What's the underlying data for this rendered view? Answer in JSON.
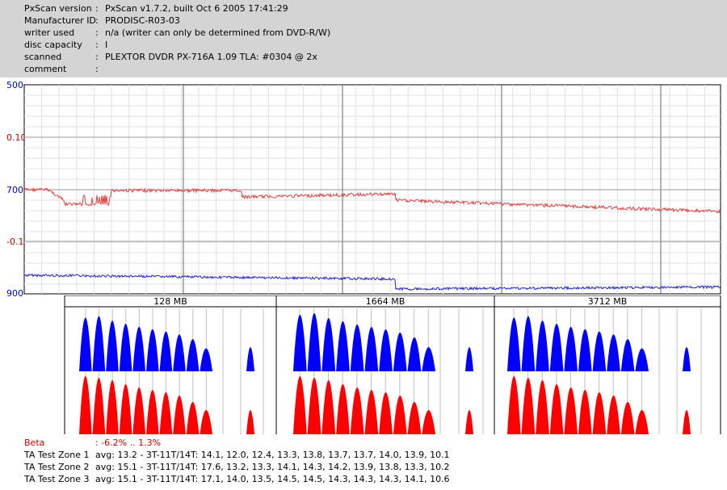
{
  "header": {
    "rows": [
      {
        "key": "PxScan version",
        "colon": ":",
        "value": "PxScan v1.7.2, built Oct  6 2005 17:41:29"
      },
      {
        "key": "Manufacturer ID",
        "colon": ":",
        "value": "PRODISC-R03-03"
      },
      {
        "key": "writer used",
        "colon": ":",
        "value": "n/a (writer can only be determined from DVD-R/W)"
      },
      {
        "key": "disc capacity",
        "colon": ":",
        "value": "I"
      },
      {
        "key": "scanned",
        "colon": ":",
        "value": "PLEXTOR DVDR PX-716A 1.09 TLA: #0304 @ 2x"
      },
      {
        "key": "comment",
        "colon": ":",
        "value": ""
      }
    ]
  },
  "plot": {
    "y_labels": [
      {
        "text": "500",
        "color": "#0000cc"
      },
      {
        "text": "0.10",
        "color": "#cc0000"
      },
      {
        "text": "700",
        "color": "#0000cc"
      },
      {
        "text": "-0.10",
        "color": "#cc0000"
      },
      {
        "text": "900",
        "color": "#0000cc"
      }
    ],
    "jitter_color": "#dd4444",
    "lengths_color": "#2222cc"
  },
  "ta": {
    "zones": [
      "128 MB",
      "1664 MB",
      "3712 MB"
    ],
    "top_color": "#0000ff",
    "bottom_color": "#ff0000"
  },
  "footer": {
    "beta_label": "Beta",
    "beta_value": ": -6.2% .. 1.3%",
    "beta_color": "#cc0000",
    "zones": [
      {
        "label": "TA Test Zone 1",
        "value": "avg: 13.2 - 3T-11T/14T: 14.1, 12.0, 12.4, 13.3, 13.8, 13.7, 13.7, 14.0, 13.9, 10.1"
      },
      {
        "label": "TA Test Zone 2",
        "value": "avg: 15.1 - 3T-11T/14T: 17.6, 13.2, 13.3, 14.1, 14.3, 14.2, 13.9, 13.8, 13.3, 10.2"
      },
      {
        "label": "TA Test Zone 3",
        "value": "avg: 15.1 - 3T-11T/14T: 17.1, 14.0, 13.5, 14.5, 14.5, 14.3, 14.3, 14.3, 14.1, 10.6"
      }
    ]
  }
}
